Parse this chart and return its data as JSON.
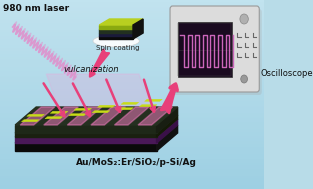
{
  "bg_color": "#b8dce8",
  "title_text": "Au/MoS₂:Er/SiO₂/p-Si/Ag",
  "laser_label": "980 nm laser",
  "spin_label": "Spin coating",
  "vulc_label": "vulcanization",
  "osc_label": "Oscilloscope",
  "osc_body": "#dcdcdc",
  "osc_screen_bg": "#1a1020",
  "signal_color": "#cc66bb",
  "arrow_color": "#e8407a",
  "laser_color": "#e090cc",
  "beam_glow": "#f0a0d8",
  "pad_color": "#c8dc18",
  "pad_dark": "#90a010",
  "chip_top": "#2a2a2a",
  "chip_side_left": "#1a1a2a",
  "chip_layer_purple": "#4a2060",
  "chip_layer_black": "#0a0a0a",
  "chip_layer_dark": "#181828",
  "chip_layer_green": "#283820"
}
